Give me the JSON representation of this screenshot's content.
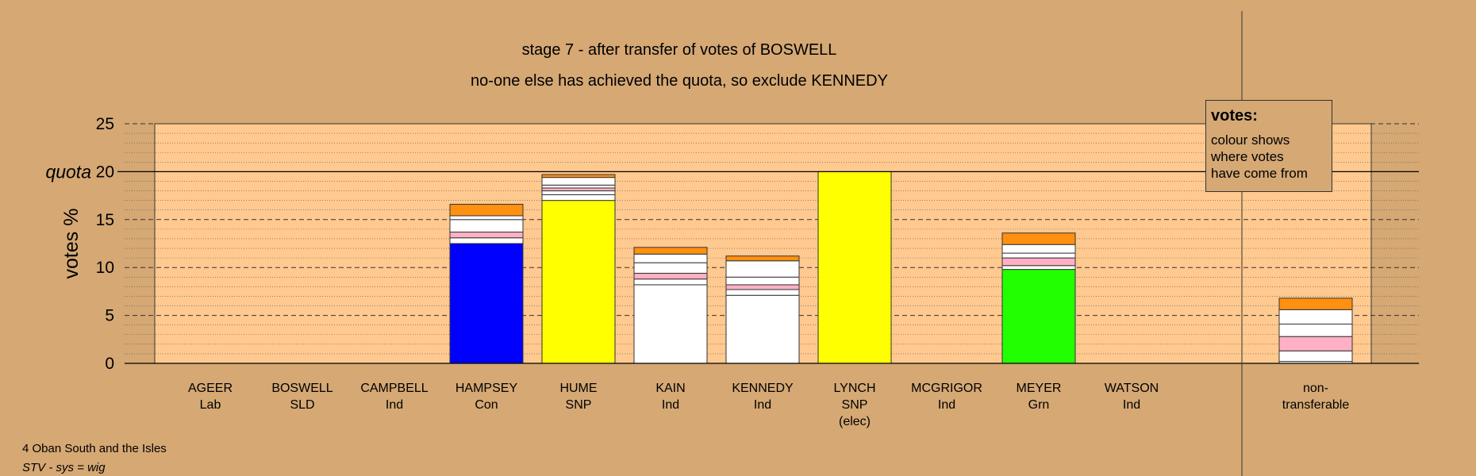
{
  "titles": {
    "line1": "stage 7 - after transfer of votes of BOSWELL",
    "line2": "no-one else has achieved the quota, so exclude KENNEDY"
  },
  "legend": {
    "heading": "votes:",
    "lines": [
      "colour shows",
      "where votes",
      "have come from"
    ]
  },
  "footer": {
    "ward": "4 Oban South and the Isles",
    "system": "STV - sys = wig"
  },
  "colors": {
    "background": "#d5a874",
    "plot_area": "#ffc98f",
    "Con": "#0000ff",
    "SNP": "#ffff00",
    "Ind": "#ffffff",
    "Grn": "#22ff00",
    "pink": "#ffb0c4",
    "orange": "#ff9010"
  },
  "chart_data": {
    "type": "bar",
    "stacked": true,
    "ylabel": "votes %",
    "ylim": [
      0,
      25
    ],
    "yticks": [
      0,
      5,
      10,
      15,
      20,
      25
    ],
    "quota": 20,
    "quota_label": "quota",
    "grid": true,
    "legend_placement": "top-right",
    "candidates": [
      {
        "name": "AGEER",
        "party": "Lab",
        "note": "",
        "segments": []
      },
      {
        "name": "BOSWELL",
        "party": "SLD",
        "note": "",
        "segments": []
      },
      {
        "name": "CAMPBELL",
        "party": "Ind",
        "note": "",
        "segments": []
      },
      {
        "name": "HAMPSEY",
        "party": "Con",
        "note": "",
        "segments": [
          {
            "value": 12.5,
            "color": "#0000ff"
          },
          {
            "value": 0.6,
            "color": "#ffffff"
          },
          {
            "value": 0.6,
            "color": "#ffb0c4"
          },
          {
            "value": 1.3,
            "color": "#ffffff"
          },
          {
            "value": 0.4,
            "color": "#ffffff"
          },
          {
            "value": 1.2,
            "color": "#ff9010"
          }
        ]
      },
      {
        "name": "HUME",
        "party": "SNP",
        "note": "",
        "segments": [
          {
            "value": 17.0,
            "color": "#ffff00"
          },
          {
            "value": 0.6,
            "color": "#ffffff"
          },
          {
            "value": 0.4,
            "color": "#ffffff"
          },
          {
            "value": 0.3,
            "color": "#ffb0c4"
          },
          {
            "value": 0.3,
            "color": "#ffffff"
          },
          {
            "value": 0.8,
            "color": "#ffffff"
          },
          {
            "value": 0.3,
            "color": "#ff9010"
          }
        ]
      },
      {
        "name": "KAIN",
        "party": "Ind",
        "note": "",
        "segments": [
          {
            "value": 8.2,
            "color": "#ffffff"
          },
          {
            "value": 0.6,
            "color": "#ffffff"
          },
          {
            "value": 0.6,
            "color": "#ffb0c4"
          },
          {
            "value": 1.1,
            "color": "#ffffff"
          },
          {
            "value": 0.9,
            "color": "#ffffff"
          },
          {
            "value": 0.7,
            "color": "#ff9010"
          }
        ]
      },
      {
        "name": "KENNEDY",
        "party": "Ind",
        "note": "",
        "segments": [
          {
            "value": 7.1,
            "color": "#ffffff"
          },
          {
            "value": 0.6,
            "color": "#ffffff"
          },
          {
            "value": 0.5,
            "color": "#ffb0c4"
          },
          {
            "value": 0.8,
            "color": "#ffffff"
          },
          {
            "value": 1.7,
            "color": "#ffffff"
          },
          {
            "value": 0.5,
            "color": "#ff9010"
          }
        ]
      },
      {
        "name": "LYNCH",
        "party": "SNP",
        "note": "(elec)",
        "segments": [
          {
            "value": 20.0,
            "color": "#ffff00"
          }
        ]
      },
      {
        "name": "MCGRIGOR",
        "party": "Ind",
        "note": "",
        "segments": []
      },
      {
        "name": "MEYER",
        "party": "Grn",
        "note": "",
        "segments": [
          {
            "value": 9.8,
            "color": "#22ff00"
          },
          {
            "value": 0.4,
            "color": "#ffffff"
          },
          {
            "value": 0.8,
            "color": "#ffb0c4"
          },
          {
            "value": 0.5,
            "color": "#ffffff"
          },
          {
            "value": 0.9,
            "color": "#ffffff"
          },
          {
            "value": 1.2,
            "color": "#ff9010"
          }
        ]
      },
      {
        "name": "WATSON",
        "party": "Ind",
        "note": "",
        "segments": []
      }
    ],
    "nontransferable": {
      "label_line1": "non-",
      "label_line2": "transferable",
      "segments": [
        {
          "value": 0.2,
          "color": "#ffffff"
        },
        {
          "value": 1.1,
          "color": "#ffffff"
        },
        {
          "value": 1.5,
          "color": "#ffb0c4"
        },
        {
          "value": 1.3,
          "color": "#ffffff"
        },
        {
          "value": 1.5,
          "color": "#ffffff"
        },
        {
          "value": 1.2,
          "color": "#ff9010"
        }
      ]
    }
  }
}
